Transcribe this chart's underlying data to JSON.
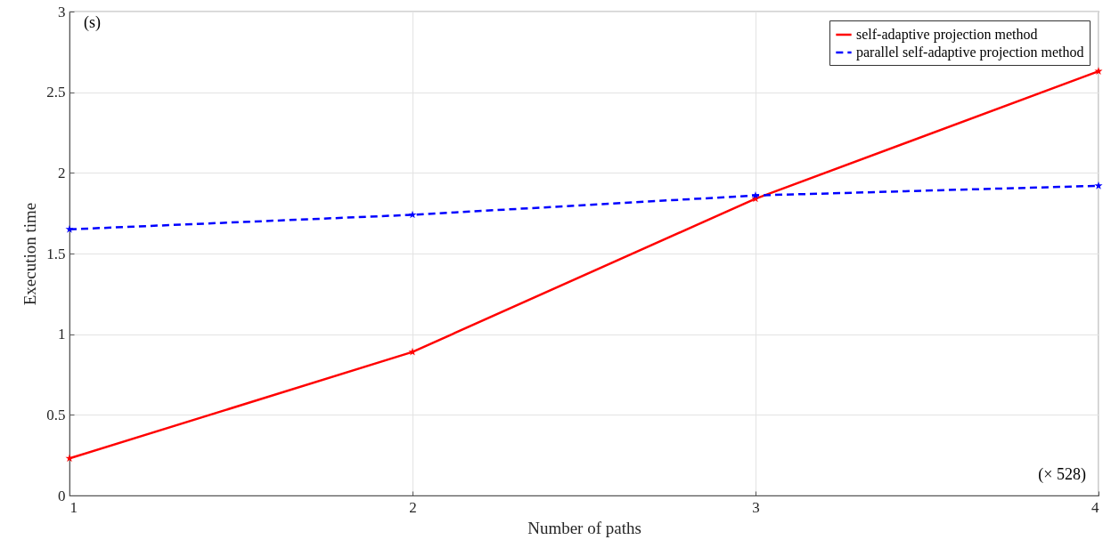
{
  "chart_data": {
    "type": "line",
    "xlabel": "Number of paths",
    "ylabel": "Execution time",
    "x": [
      1,
      2,
      3,
      4
    ],
    "series": [
      {
        "name": "self-adaptive projection method",
        "color": "#ff0000",
        "line_style": "solid",
        "values": [
          0.23,
          0.89,
          1.84,
          2.63
        ]
      },
      {
        "name": "parallel self-adaptive projection method",
        "color": "#0000ff",
        "line_style": "dashed",
        "values": [
          1.65,
          1.74,
          1.86,
          1.92
        ]
      }
    ],
    "xlim": [
      1,
      4
    ],
    "xticks": [
      1,
      2,
      3,
      4
    ],
    "ylim": [
      0,
      3
    ],
    "yticks": [
      0,
      0.5,
      1,
      1.5,
      2,
      2.5,
      3
    ],
    "grid": true,
    "legend": "top right",
    "marker": "star",
    "annotations": [
      "(s)",
      "(× 528)"
    ]
  }
}
